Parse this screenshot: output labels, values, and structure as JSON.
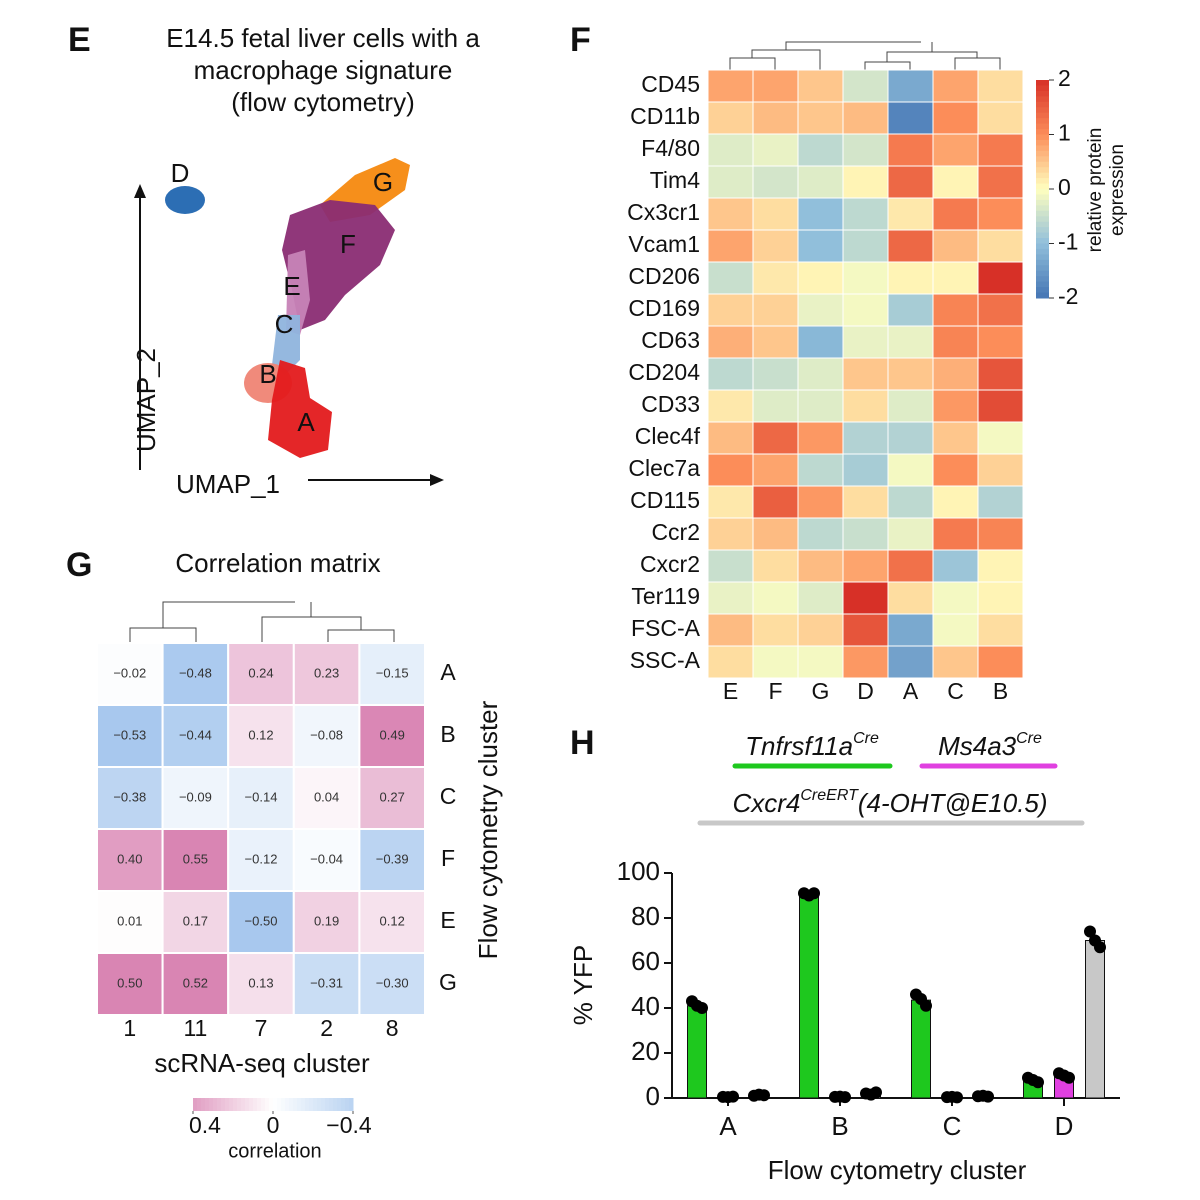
{
  "chart_data": [
    {
      "type": "scatter",
      "panel": "E",
      "title_lines": [
        "E14.5 fetal liver cells with a",
        "macrophage signature",
        "(flow cytometry)"
      ],
      "xlabel": "UMAP_1",
      "ylabel": "UMAP_2",
      "clusters": [
        "D",
        "G",
        "F",
        "E",
        "C",
        "B",
        "A"
      ],
      "colors": [
        "#2166b0",
        "#f5890f",
        "#8a2c73",
        "#c783b7",
        "#8fb4dd",
        "#ef8474",
        "#e31a1c"
      ]
    },
    {
      "type": "heatmap",
      "panel": "F",
      "rows": [
        "CD45",
        "CD11b",
        "F4/80",
        "Tim4",
        "Cx3cr1",
        "Vcam1",
        "CD206",
        "CD169",
        "CD63",
        "CD204",
        "CD33",
        "Clec4f",
        "Clec7a",
        "CD115",
        "Ccr2",
        "Cxcr2",
        "Ter119",
        "FSC-A",
        "SSC-A"
      ],
      "columns": [
        "E",
        "F",
        "G",
        "D",
        "A",
        "C",
        "B"
      ],
      "values": [
        [
          0.8,
          0.8,
          0.5,
          -0.4,
          -1.3,
          0.8,
          0.3
        ],
        [
          0.4,
          0.6,
          0.5,
          0.6,
          -1.8,
          1.0,
          0.3
        ],
        [
          -0.3,
          -0.2,
          -0.6,
          -0.4,
          1.2,
          0.8,
          1.2
        ],
        [
          -0.3,
          -0.4,
          -0.3,
          0.1,
          1.4,
          0.1,
          1.3
        ],
        [
          0.5,
          0.3,
          -1.0,
          -0.6,
          0.2,
          1.2,
          1.0
        ],
        [
          0.8,
          0.4,
          -1.0,
          -0.6,
          1.4,
          0.6,
          0.3
        ],
        [
          -0.5,
          0.2,
          0.1,
          -0.1,
          0.1,
          0.1,
          2.0
        ],
        [
          0.4,
          0.4,
          -0.2,
          -0.1,
          -0.8,
          1.1,
          1.3
        ],
        [
          0.7,
          0.5,
          -1.1,
          -0.2,
          -0.2,
          1.1,
          1.0
        ],
        [
          -0.6,
          -0.5,
          -0.3,
          0.5,
          0.5,
          0.7,
          1.6
        ],
        [
          0.2,
          -0.3,
          -0.3,
          0.3,
          -0.3,
          0.9,
          1.7
        ],
        [
          0.6,
          1.4,
          0.9,
          -0.7,
          -0.7,
          0.5,
          -0.1
        ],
        [
          1.0,
          0.8,
          -0.6,
          -0.8,
          -0.1,
          1.0,
          0.4
        ],
        [
          0.2,
          1.5,
          0.9,
          0.3,
          -0.6,
          0.1,
          -0.7
        ],
        [
          0.4,
          0.6,
          -0.6,
          -0.5,
          -0.2,
          1.2,
          1.1
        ],
        [
          -0.5,
          0.3,
          0.6,
          0.8,
          1.3,
          -0.9,
          0.1
        ],
        [
          -0.2,
          -0.1,
          -0.3,
          2.0,
          0.3,
          -0.1,
          0.1
        ],
        [
          0.6,
          0.3,
          0.4,
          1.6,
          -1.3,
          -0.1,
          0.3
        ],
        [
          0.3,
          -0.1,
          -0.1,
          0.9,
          -1.4,
          0.5,
          1.0
        ]
      ],
      "clim": [
        -2,
        2
      ],
      "cticks": [
        2,
        1,
        0,
        -1,
        -2
      ],
      "colorbar_label": [
        "relative protein",
        "expression"
      ]
    },
    {
      "type": "heatmap",
      "panel": "G",
      "title": "Correlation matrix",
      "rows": [
        "A",
        "B",
        "C",
        "F",
        "E",
        "G"
      ],
      "columns": [
        "1",
        "11",
        "7",
        "2",
        "8"
      ],
      "values": [
        [
          -0.02,
          -0.48,
          0.24,
          0.23,
          -0.15
        ],
        [
          -0.53,
          -0.44,
          0.12,
          -0.08,
          0.49
        ],
        [
          -0.38,
          -0.09,
          -0.14,
          0.04,
          0.27
        ],
        [
          0.4,
          0.55,
          -0.12,
          -0.04,
          -0.39
        ],
        [
          0.01,
          0.17,
          -0.5,
          0.19,
          0.12
        ],
        [
          0.5,
          0.52,
          0.13,
          -0.31,
          -0.3
        ]
      ],
      "value_labels": [
        [
          "−0.02",
          "−0.48",
          "0.24",
          "0.23",
          "−0.15"
        ],
        [
          "−0.53",
          "−0.44",
          "0.12",
          "−0.08",
          "0.49"
        ],
        [
          "−0.38",
          "−0.09",
          "−0.14",
          "0.04",
          "0.27"
        ],
        [
          "0.40",
          "0.55",
          "−0.12",
          "−0.04",
          "−0.39"
        ],
        [
          "0.01",
          "0.17",
          "−0.50",
          "0.19",
          "0.12"
        ],
        [
          "0.50",
          "0.52",
          "0.13",
          "−0.31",
          "−0.30"
        ]
      ],
      "xlabel": "scRNA-seq cluster",
      "ylabel": "Flow cytometry cluster",
      "clim": [
        0.4,
        -0.4
      ],
      "cticks": [
        0.4,
        0,
        {
          "value": -0.4,
          "label": "−0.4"
        }
      ],
      "colorbar_label": "correlation"
    },
    {
      "type": "bar",
      "panel": "H",
      "categories": [
        "A",
        "B",
        "C",
        "D"
      ],
      "series": [
        {
          "name": "Tnfrsf11a",
          "superscript": "Cre",
          "color": "#1ec81e",
          "values": [
            41,
            90.5,
            43.5,
            8
          ],
          "points": [
            [
              43,
              41,
              40
            ],
            [
              91,
              90,
              91
            ],
            [
              46,
              44,
              41
            ],
            [
              9,
              8,
              7
            ]
          ]
        },
        {
          "name": "Ms4a3",
          "superscript": "Cre",
          "color": "#e040e0",
          "values": [
            0.5,
            0.5,
            0.4,
            10
          ],
          "points": [
            [
              0.5,
              0.4,
              0.6
            ],
            [
              0.5,
              0.6,
              0.4
            ],
            [
              0.4,
              0.5,
              0.3
            ],
            [
              11,
              10,
              9
            ]
          ]
        },
        {
          "name": "Cxcr4",
          "superscript": "CreERT",
          "suffix": "(4-OHT@E10.5)",
          "color": "#c8c8c8",
          "values": [
            1.2,
            2,
            0.8,
            70
          ],
          "points": [
            [
              1,
              1.5,
              1.2
            ],
            [
              2,
              1.5,
              2.5
            ],
            [
              0.8,
              1,
              0.6
            ],
            [
              74,
              70,
              67
            ]
          ]
        }
      ],
      "ylim": [
        0,
        100
      ],
      "yticks": [
        0,
        20,
        40,
        60,
        80,
        100
      ],
      "ylabel": "% YFP",
      "xlabel": "Flow cytometry cluster"
    }
  ]
}
